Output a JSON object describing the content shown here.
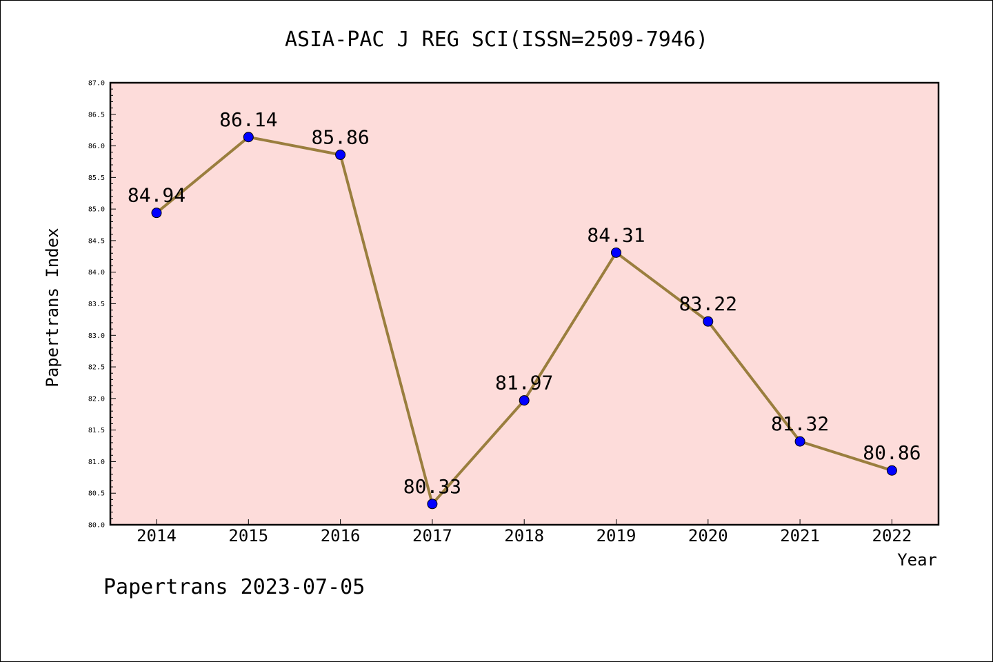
{
  "chart_data": {
    "type": "line",
    "title": "ASIA-PAC J REG SCI(ISSN=2509-7946)",
    "xlabel": "Year",
    "ylabel": "Papertrans Index",
    "categories": [
      "2014",
      "2015",
      "2016",
      "2017",
      "2018",
      "2019",
      "2020",
      "2021",
      "2022"
    ],
    "series": [
      {
        "values": [
          84.94,
          86.14,
          85.86,
          80.33,
          81.97,
          84.31,
          83.22,
          81.32,
          80.86
        ]
      }
    ],
    "data_labels": [
      "84.94",
      "86.14",
      "85.86",
      "80.33",
      "81.97",
      "84.31",
      "83.22",
      "81.32",
      "80.86"
    ],
    "ylim": [
      80.0,
      87.0
    ],
    "yticks": [
      "80.0",
      "80.5",
      "81.0",
      "81.5",
      "82.0",
      "82.5",
      "83.0",
      "83.5",
      "84.0",
      "84.5",
      "85.0",
      "85.5",
      "86.0",
      "86.5",
      "87.0"
    ],
    "grid": false,
    "colors": {
      "background": "#fddcda",
      "line": "#9a7e3e",
      "marker": "#0000ff"
    }
  },
  "footer": "Papertrans 2023-07-05"
}
